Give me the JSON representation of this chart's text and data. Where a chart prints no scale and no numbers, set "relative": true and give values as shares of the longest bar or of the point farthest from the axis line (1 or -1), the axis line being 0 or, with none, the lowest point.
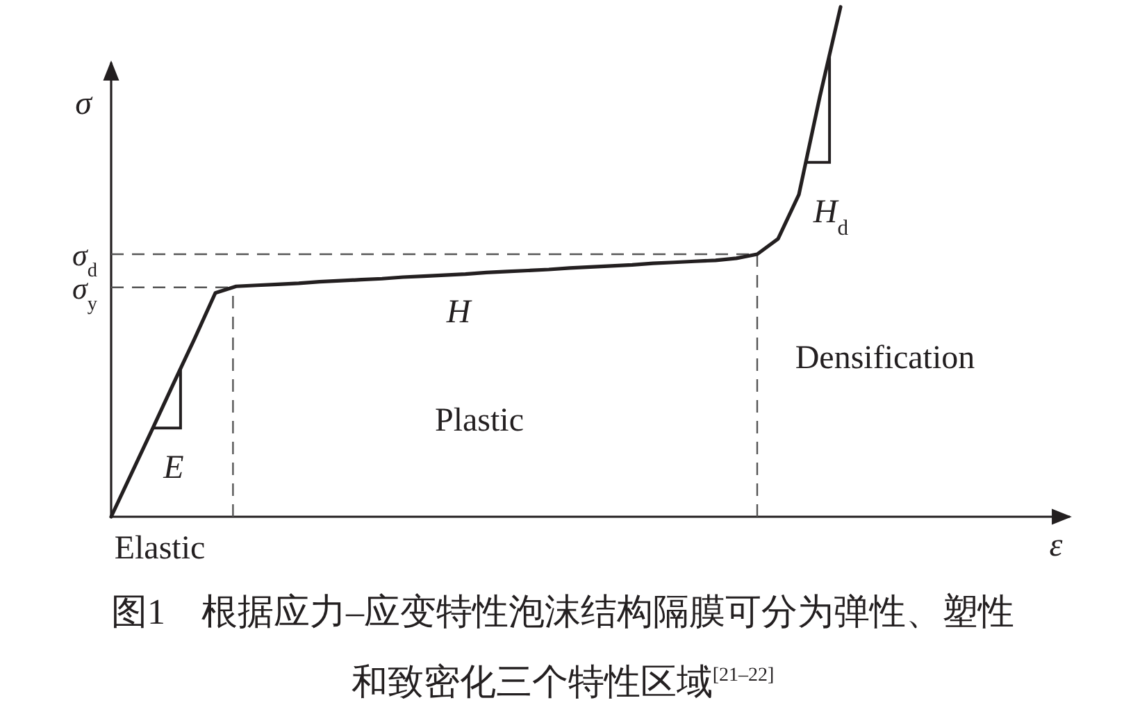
{
  "chart_data": {
    "type": "line",
    "relative": true,
    "color": "#231f20",
    "ylabel": "σ",
    "categories": [
      null,
      null,
      null,
      null,
      null,
      null,
      null,
      null,
      null,
      null,
      null,
      null,
      null,
      null,
      null,
      null,
      null,
      null,
      null,
      null,
      null,
      null,
      null,
      null,
      null,
      null,
      null,
      null,
      null,
      null,
      null,
      null,
      null,
      null,
      null,
      null
    ],
    "values": [
      0,
      0.087,
      0.174,
      0.262,
      0.349,
      0.439,
      0.452,
      0.454,
      0.456,
      0.458,
      0.461,
      0.463,
      0.465,
      0.467,
      0.47,
      0.472,
      0.474,
      0.476,
      0.479,
      0.481,
      0.483,
      0.485,
      0.488,
      0.49,
      0.492,
      0.494,
      0.497,
      0.499,
      0.501,
      0.503,
      0.507,
      0.515,
      0.545,
      0.632,
      0.823,
      1
    ],
    "ref_lines": [
      {
        "axis": "y",
        "value": 0.45,
        "label": "σ$_{y}$",
        "line_style": "dashed"
      },
      {
        "axis": "y",
        "value": 0.515,
        "label": "σ$_{d}$",
        "line_style": "dashed"
      }
    ],
    "annotations": [
      "E",
      "H",
      "H$_{d}$",
      "Elastic",
      "Plastic",
      "Densification",
      "ε",
      "图1　根据应力–应变特性泡沫结构隔膜可分为弹性、塑性和致密化三个特性区域$^{[21–22]}$"
    ]
  }
}
